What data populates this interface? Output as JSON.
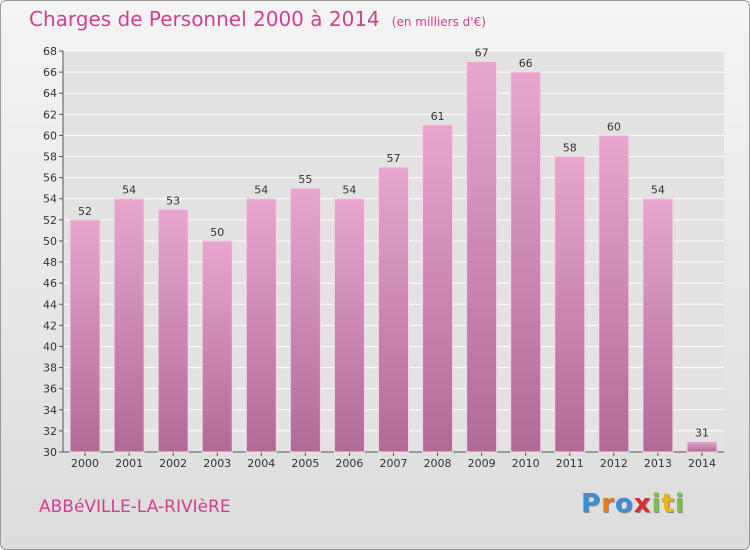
{
  "chart_data": {
    "type": "bar",
    "title": "Charges de Personnel 2000 à 2014",
    "subtitle": "(en milliers d'€)",
    "categories": [
      "2000",
      "2001",
      "2002",
      "2003",
      "2004",
      "2005",
      "2006",
      "2007",
      "2008",
      "2009",
      "2010",
      "2011",
      "2012",
      "2013",
      "2014"
    ],
    "values": [
      52,
      54,
      53,
      50,
      54,
      55,
      54,
      57,
      61,
      67,
      66,
      58,
      60,
      54,
      31
    ],
    "ylim": [
      30,
      68
    ],
    "yticks": [
      30,
      32,
      34,
      36,
      38,
      40,
      42,
      44,
      46,
      48,
      50,
      52,
      54,
      56,
      58,
      60,
      62,
      64,
      66,
      68
    ],
    "grid": true,
    "colors": {
      "bar_top": "#e8a6cf",
      "bar_bottom": "#b06a96",
      "grid": "#ffffff",
      "accent": "#d0408f"
    }
  },
  "footer": {
    "city": "ABBéVILLE-LA-RIVIèRE",
    "logo": [
      "P",
      "r",
      "o",
      "x",
      "i",
      "t",
      "i"
    ],
    "logo_colors": [
      "#3a8fd8",
      "#e87b1c",
      "#3a8fd8",
      "#d62f2f",
      "#7ac143",
      "#e8b51c",
      "#7ac143"
    ]
  }
}
